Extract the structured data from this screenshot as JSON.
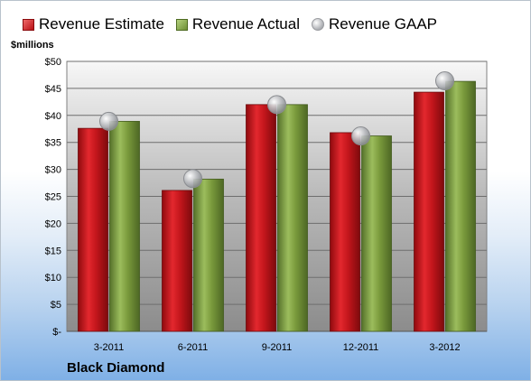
{
  "chart_data": {
    "type": "bar",
    "categories": [
      "3-2011",
      "6-2011",
      "9-2011",
      "12-2011",
      "3-2012"
    ],
    "series": [
      {
        "name": "Revenue Estimate",
        "values": [
          37.6,
          26.1,
          42.0,
          36.8,
          44.3
        ],
        "color": "#c4161c"
      },
      {
        "name": "Revenue Actual",
        "values": [
          38.9,
          28.2,
          42.0,
          36.2,
          46.3
        ],
        "color": "#7a9a3c"
      },
      {
        "name": "Revenue GAAP",
        "values": [
          38.9,
          28.3,
          42.0,
          36.2,
          46.4
        ],
        "color": "#c0c2c6"
      }
    ],
    "ylabel": "$millions",
    "ylim": [
      0,
      50
    ],
    "yticks": [
      "$-",
      "$5",
      "$10",
      "$15",
      "$20",
      "$25",
      "$30",
      "$35",
      "$40",
      "$45",
      "$50"
    ],
    "ytick_values": [
      0,
      5,
      10,
      15,
      20,
      25,
      30,
      35,
      40,
      45,
      50
    ],
    "grid": true,
    "legend_position": "top",
    "company": "Black Diamond"
  }
}
